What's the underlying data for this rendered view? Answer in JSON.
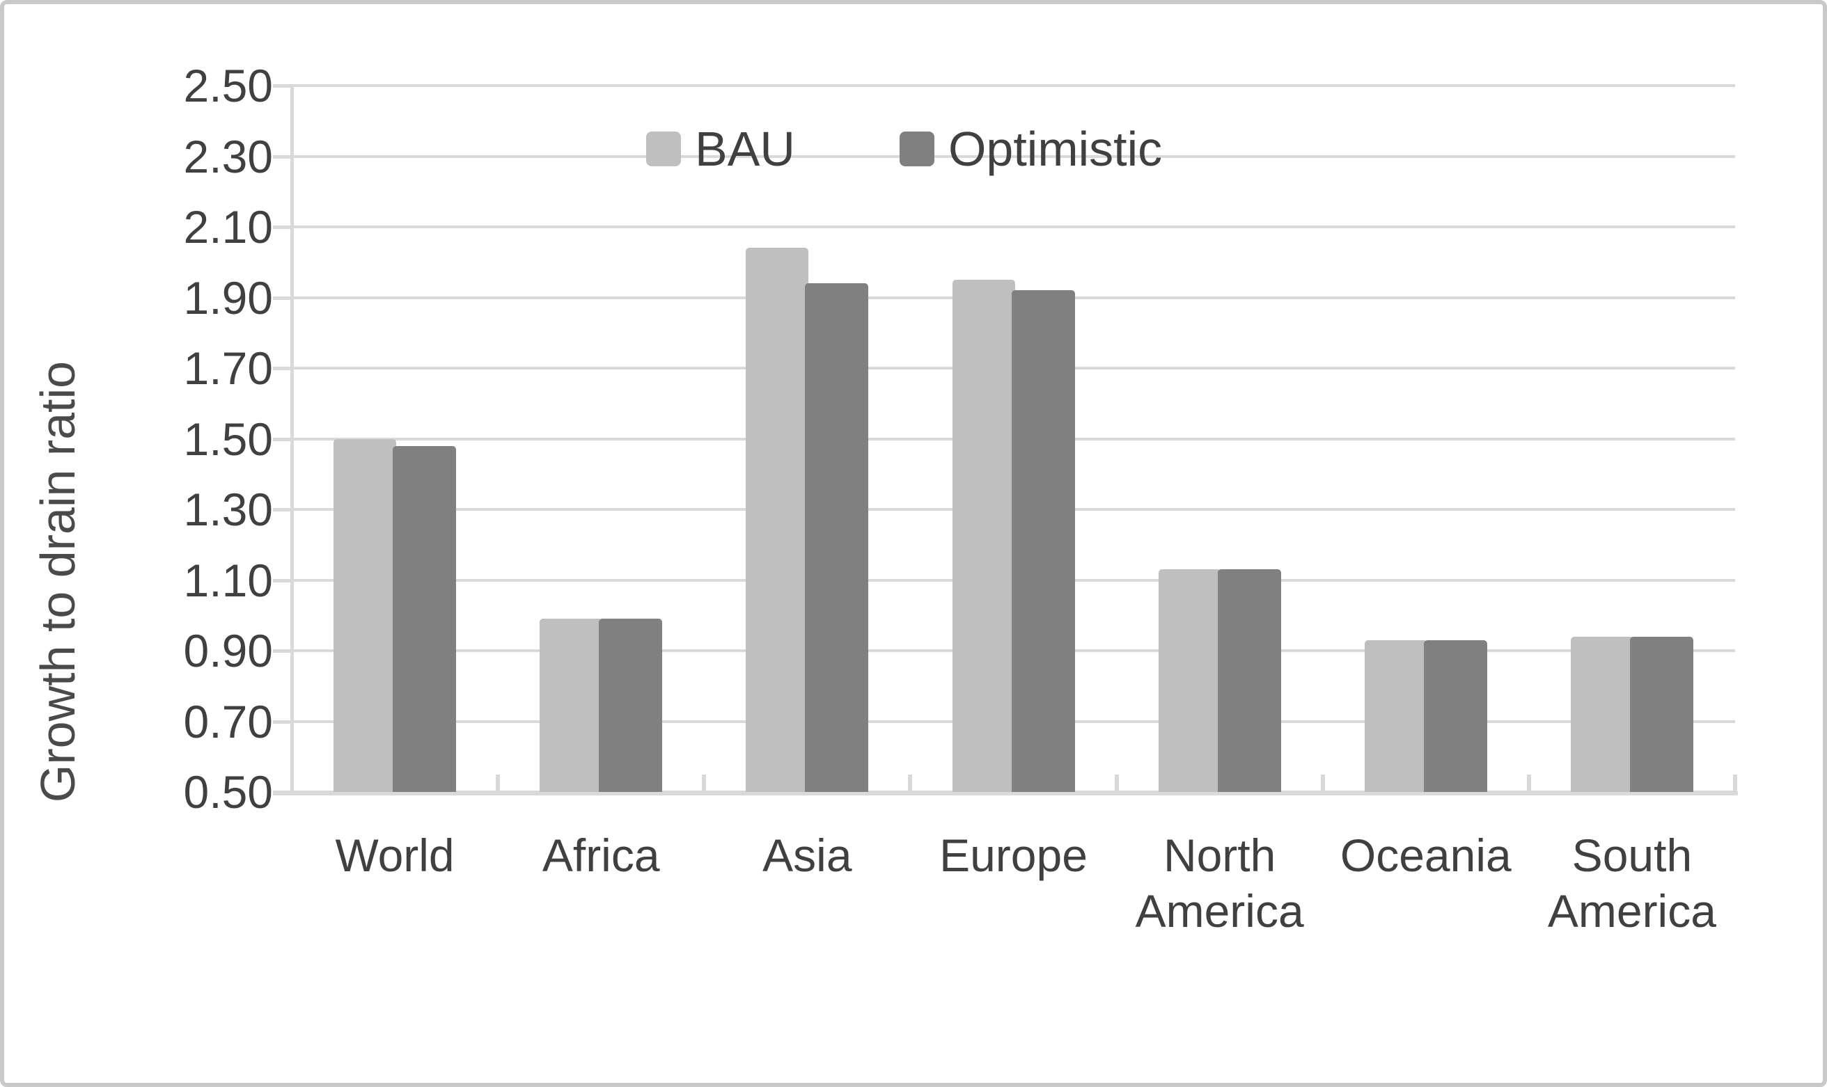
{
  "chart_data": {
    "type": "bar",
    "title": "",
    "xlabel": "",
    "ylabel": "Growth to drain ratio",
    "categories": [
      "World",
      "Africa",
      "Asia",
      "Europe",
      "North America",
      "Oceania",
      "South America"
    ],
    "series": [
      {
        "name": "BAU",
        "color": "#bfbfbf",
        "values": [
          1.5,
          0.99,
          2.04,
          1.95,
          1.13,
          0.93,
          0.94
        ]
      },
      {
        "name": "Optimistic",
        "color": "#808080",
        "values": [
          1.48,
          0.99,
          1.94,
          1.92,
          1.13,
          0.93,
          0.94
        ]
      }
    ],
    "ylim": [
      0.5,
      2.5
    ],
    "ytick_step": 0.2,
    "ytick_labels": [
      "0.50",
      "0.70",
      "0.90",
      "1.10",
      "1.30",
      "1.50",
      "1.70",
      "1.90",
      "2.10",
      "2.30",
      "2.50"
    ],
    "grid": true,
    "legend_position": "top-center-inside"
  },
  "colors": {
    "gridline": "#d9d9d9",
    "axis_text": "#404040",
    "frame_border": "#c9c9c9"
  }
}
